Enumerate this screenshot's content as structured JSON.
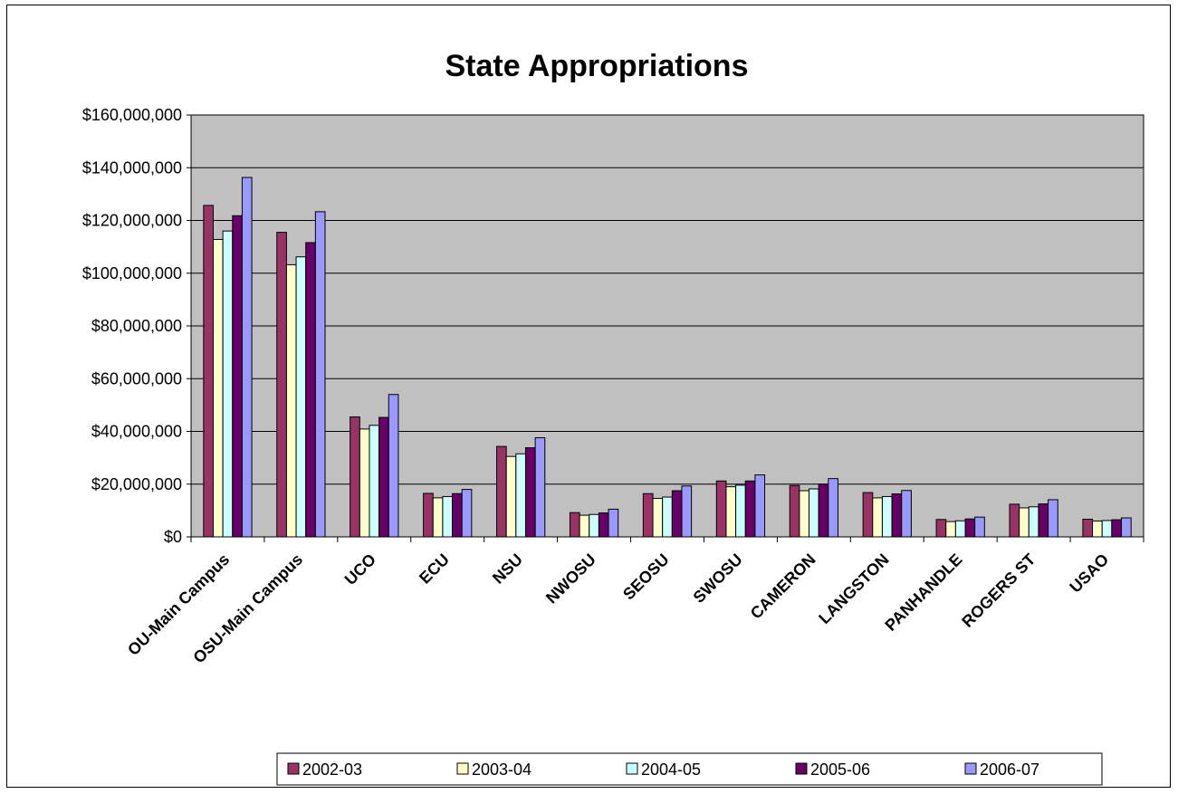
{
  "chart_data": {
    "type": "bar",
    "title": "State Appropriations",
    "xlabel": "",
    "ylabel": "",
    "ylim": [
      0,
      160000000
    ],
    "yticks": [
      0,
      20000000,
      40000000,
      60000000,
      80000000,
      100000000,
      120000000,
      140000000,
      160000000
    ],
    "ytick_labels": [
      "$0",
      "$20,000,000",
      "$40,000,000",
      "$60,000,000",
      "$80,000,000",
      "$100,000,000",
      "$120,000,000",
      "$140,000,000",
      "$160,000,000"
    ],
    "grid": true,
    "plot_background": "#c0c0c0",
    "legend_position": "bottom",
    "categories": [
      "OU-Main Campus",
      "OSU-Main Campus",
      "UCO",
      "ECU",
      "NSU",
      "NWOSU",
      "SEOSU",
      "SWOSU",
      "CAMERON",
      "LANGSTON",
      "PANHANDLE",
      "ROGERS ST",
      "USAO"
    ],
    "series": [
      {
        "name": "2002-03",
        "color": "#993366",
        "values": [
          125700000,
          115500000,
          45500000,
          16500000,
          34300000,
          9200000,
          16400000,
          21200000,
          19500000,
          16800000,
          6600000,
          12400000,
          6700000
        ]
      },
      {
        "name": "2003-04",
        "color": "#ffffcc",
        "values": [
          112800000,
          103200000,
          40900000,
          14800000,
          30500000,
          8200000,
          14600000,
          19000000,
          17500000,
          14800000,
          5800000,
          11000000,
          6000000
        ]
      },
      {
        "name": "2004-05",
        "color": "#ccffff",
        "values": [
          116000000,
          106200000,
          42300000,
          15300000,
          31500000,
          8500000,
          15100000,
          19600000,
          18200000,
          15300000,
          6100000,
          11400000,
          6200000
        ]
      },
      {
        "name": "2005-06",
        "color": "#660066",
        "values": [
          121800000,
          111600000,
          45300000,
          16400000,
          33800000,
          9100000,
          17500000,
          21200000,
          20000000,
          16300000,
          6800000,
          12500000,
          6500000
        ]
      },
      {
        "name": "2006-07",
        "color": "#9999ff",
        "values": [
          136300000,
          123300000,
          54000000,
          18000000,
          37600000,
          10500000,
          19300000,
          23500000,
          22100000,
          17600000,
          7500000,
          14100000,
          7200000
        ]
      }
    ]
  }
}
